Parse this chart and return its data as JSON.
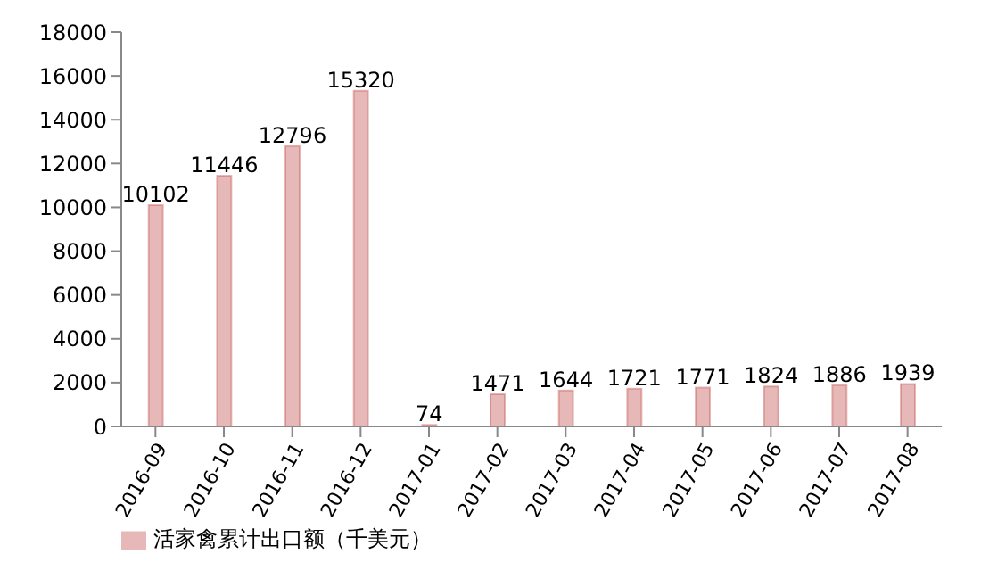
{
  "chart_data": {
    "type": "bar",
    "categories": [
      "2016-09",
      "2016-10",
      "2016-11",
      "2016-12",
      "2017-01",
      "2017-02",
      "2017-03",
      "2017-04",
      "2017-05",
      "2017-06",
      "2017-07",
      "2017-08"
    ],
    "series": [
      {
        "name": "活家禽累计出口额（千美元）",
        "color": "#e6b8b7",
        "values": [
          10102,
          11446,
          12796,
          15320,
          74,
          1471,
          1644,
          1721,
          1771,
          1824,
          1886,
          1939
        ]
      }
    ],
    "ylim": [
      0,
      18000
    ],
    "yticks": [
      0,
      2000,
      4000,
      6000,
      8000,
      10000,
      12000,
      14000,
      16000,
      18000
    ],
    "data_labels": true,
    "grid": false,
    "legend": "bottom"
  }
}
